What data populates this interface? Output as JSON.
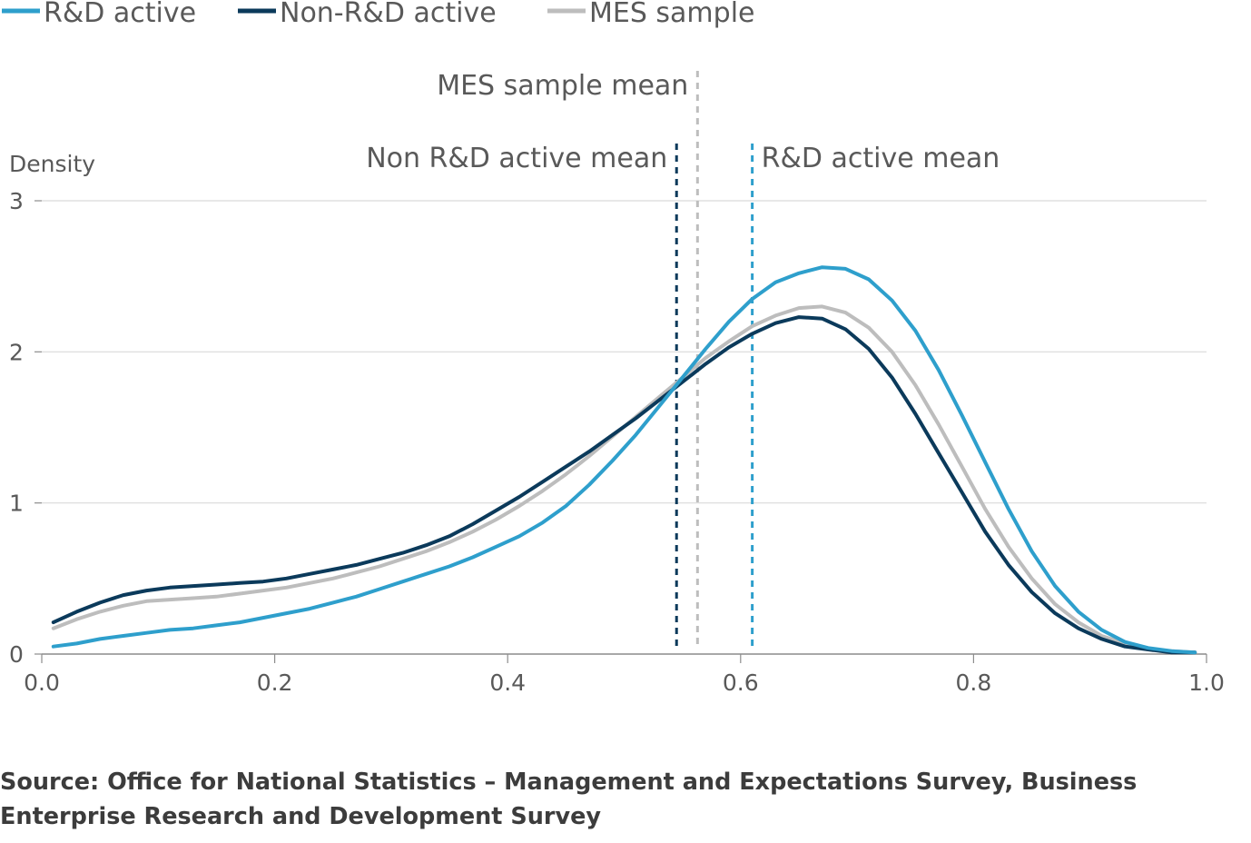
{
  "chart_data": {
    "type": "line",
    "title": "",
    "xlabel": "",
    "ylabel": "Density",
    "xlim": [
      0,
      1
    ],
    "ylim": [
      0,
      3
    ],
    "x_ticks": [
      0,
      0.2,
      0.4,
      0.6,
      0.8,
      1.0
    ],
    "x_tick_labels": [
      "0.0",
      "0.2",
      "0.4",
      "0.6",
      "0.8",
      "1.0"
    ],
    "y_ticks": [
      0,
      1,
      2,
      3
    ],
    "y_tick_labels": [
      "0",
      "1",
      "2",
      "3"
    ],
    "grid": "horizontal",
    "legend_position": "top-left",
    "x": [
      0.01,
      0.03,
      0.05,
      0.07,
      0.09,
      0.11,
      0.13,
      0.15,
      0.17,
      0.19,
      0.21,
      0.23,
      0.25,
      0.27,
      0.29,
      0.31,
      0.33,
      0.35,
      0.37,
      0.39,
      0.41,
      0.43,
      0.45,
      0.47,
      0.49,
      0.51,
      0.53,
      0.55,
      0.57,
      0.59,
      0.61,
      0.63,
      0.65,
      0.67,
      0.69,
      0.71,
      0.73,
      0.75,
      0.77,
      0.79,
      0.81,
      0.83,
      0.85,
      0.87,
      0.89,
      0.91,
      0.93,
      0.95,
      0.97,
      0.99
    ],
    "series": [
      {
        "name": "R&D active",
        "color": "#2e9fcc",
        "values": [
          0.05,
          0.07,
          0.1,
          0.12,
          0.14,
          0.16,
          0.17,
          0.19,
          0.21,
          0.24,
          0.27,
          0.3,
          0.34,
          0.38,
          0.43,
          0.48,
          0.53,
          0.58,
          0.64,
          0.71,
          0.78,
          0.87,
          0.98,
          1.12,
          1.28,
          1.45,
          1.64,
          1.83,
          2.02,
          2.2,
          2.35,
          2.46,
          2.52,
          2.56,
          2.55,
          2.48,
          2.34,
          2.14,
          1.88,
          1.58,
          1.27,
          0.96,
          0.68,
          0.45,
          0.28,
          0.16,
          0.08,
          0.04,
          0.02,
          0.01
        ]
      },
      {
        "name": "Non-R&D active",
        "color": "#0b3a5b",
        "values": [
          0.21,
          0.28,
          0.34,
          0.39,
          0.42,
          0.44,
          0.45,
          0.46,
          0.47,
          0.48,
          0.5,
          0.53,
          0.56,
          0.59,
          0.63,
          0.67,
          0.72,
          0.78,
          0.86,
          0.95,
          1.04,
          1.14,
          1.24,
          1.34,
          1.45,
          1.56,
          1.68,
          1.8,
          1.92,
          2.03,
          2.12,
          2.19,
          2.23,
          2.22,
          2.15,
          2.02,
          1.83,
          1.59,
          1.33,
          1.07,
          0.81,
          0.59,
          0.41,
          0.27,
          0.17,
          0.1,
          0.05,
          0.03,
          0.01,
          0.01
        ]
      },
      {
        "name": "MES sample",
        "color": "#bdbdbd",
        "values": [
          0.17,
          0.23,
          0.28,
          0.32,
          0.35,
          0.36,
          0.37,
          0.38,
          0.4,
          0.42,
          0.44,
          0.47,
          0.5,
          0.54,
          0.58,
          0.63,
          0.68,
          0.74,
          0.81,
          0.89,
          0.98,
          1.08,
          1.19,
          1.31,
          1.44,
          1.57,
          1.7,
          1.83,
          1.96,
          2.07,
          2.17,
          2.24,
          2.29,
          2.3,
          2.26,
          2.16,
          2.0,
          1.78,
          1.52,
          1.24,
          0.96,
          0.71,
          0.5,
          0.33,
          0.21,
          0.12,
          0.07,
          0.03,
          0.02,
          0.01
        ]
      }
    ],
    "reference_lines": [
      {
        "label": "Non R&D active mean",
        "x": 0.545,
        "color": "#0b3a5b",
        "label_side": "left",
        "label_level": "lower"
      },
      {
        "label": "MES sample mean",
        "x": 0.563,
        "color": "#bdbdbd",
        "label_side": "left",
        "label_level": "upper"
      },
      {
        "label": "R&D active mean",
        "x": 0.61,
        "color": "#2e9fcc",
        "label_side": "right",
        "label_level": "lower"
      }
    ]
  },
  "source": "Source: Office for National Statistics – Management and Expectations Survey, Business Enterprise Research and Development Survey"
}
